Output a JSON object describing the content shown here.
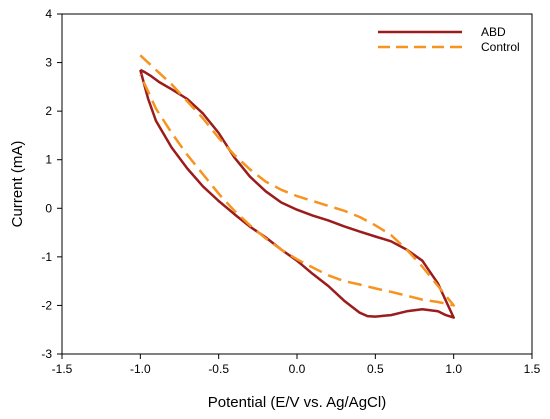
{
  "chart_data": {
    "type": "line",
    "title": "",
    "xlabel": "Potential (E/V vs. Ag/AgCl)",
    "ylabel": "Current (mA)",
    "xlim": [
      -1.5,
      1.5
    ],
    "ylim": [
      -3,
      4
    ],
    "xticks": [
      -1.5,
      -1.0,
      -0.5,
      0.0,
      0.5,
      1.0,
      1.5
    ],
    "xtick_labels": [
      "-1.5",
      "-1.0",
      "-0.5",
      "0.0",
      "0.5",
      "1.0",
      "1.5"
    ],
    "yticks": [
      -3,
      -2,
      -1,
      0,
      1,
      2,
      3,
      4
    ],
    "ytick_labels": [
      "-3",
      "-2",
      "-1",
      "0",
      "1",
      "2",
      "3",
      "4"
    ],
    "grid": false,
    "legend_position": "top-right",
    "series": [
      {
        "name": "ABD",
        "color": "#9b1c1c",
        "style": "solid",
        "x": [
          -1.0,
          -0.97,
          -0.93,
          -0.88,
          -0.8,
          -0.7,
          -0.6,
          -0.5,
          -0.4,
          -0.3,
          -0.2,
          -0.1,
          0.0,
          0.1,
          0.2,
          0.3,
          0.4,
          0.5,
          0.6,
          0.7,
          0.8,
          0.9,
          0.95,
          1.0,
          0.95,
          0.9,
          0.8,
          0.7,
          0.6,
          0.5,
          0.45,
          0.4,
          0.3,
          0.2,
          0.1,
          0.0,
          -0.1,
          -0.2,
          -0.3,
          -0.4,
          -0.5,
          -0.6,
          -0.7,
          -0.8,
          -0.9,
          -0.95,
          -1.0
        ],
        "y": [
          2.85,
          2.8,
          2.72,
          2.6,
          2.45,
          2.25,
          1.95,
          1.55,
          1.05,
          0.65,
          0.35,
          0.12,
          -0.03,
          -0.15,
          -0.25,
          -0.37,
          -0.48,
          -0.58,
          -0.68,
          -0.85,
          -1.08,
          -1.55,
          -1.9,
          -2.25,
          -2.2,
          -2.12,
          -2.08,
          -2.12,
          -2.2,
          -2.23,
          -2.22,
          -2.15,
          -1.9,
          -1.6,
          -1.35,
          -1.08,
          -0.85,
          -0.6,
          -0.38,
          -0.12,
          0.15,
          0.45,
          0.82,
          1.25,
          1.8,
          2.25,
          2.85
        ]
      },
      {
        "name": "Control",
        "color": "#f7931e",
        "style": "dashed",
        "x": [
          -1.0,
          -0.9,
          -0.8,
          -0.7,
          -0.6,
          -0.5,
          -0.4,
          -0.3,
          -0.2,
          -0.1,
          0.0,
          0.1,
          0.2,
          0.3,
          0.4,
          0.5,
          0.6,
          0.7,
          0.8,
          0.9,
          1.0,
          0.9,
          0.8,
          0.7,
          0.6,
          0.5,
          0.4,
          0.3,
          0.2,
          0.1,
          0.0,
          -0.1,
          -0.2,
          -0.3,
          -0.4,
          -0.5,
          -0.6,
          -0.7,
          -0.8,
          -0.9,
          -0.95,
          -1.0
        ],
        "y": [
          3.15,
          2.85,
          2.55,
          2.2,
          1.85,
          1.45,
          1.1,
          0.8,
          0.55,
          0.38,
          0.25,
          0.15,
          0.05,
          -0.05,
          -0.18,
          -0.35,
          -0.55,
          -0.85,
          -1.2,
          -1.6,
          -2.0,
          -1.93,
          -1.88,
          -1.8,
          -1.72,
          -1.65,
          -1.57,
          -1.5,
          -1.38,
          -1.22,
          -1.05,
          -0.85,
          -0.62,
          -0.35,
          -0.05,
          0.3,
          0.7,
          1.1,
          1.55,
          2.05,
          2.4,
          2.75
        ]
      }
    ]
  }
}
